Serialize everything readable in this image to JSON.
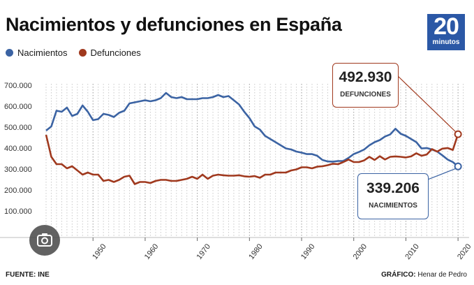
{
  "header": {
    "title": "Nacimientos y defunciones en España",
    "logo_number": "20",
    "logo_word": "minutos"
  },
  "legend": [
    {
      "label": "Nacimientos",
      "color": "#3b63a3"
    },
    {
      "label": "Defunciones",
      "color": "#a0391e"
    }
  ],
  "callouts": {
    "deaths": {
      "value": "492.930",
      "label": "DEFUNCIONES"
    },
    "births": {
      "value": "339.206",
      "label": "NACIMIENTOS"
    }
  },
  "footer": {
    "source": "FUENTE: INE",
    "credit_label": "GRÁFICO:",
    "credit_name": "Henar de Pedro"
  },
  "icons": {
    "overlay": "camera-icon"
  },
  "chart_data": {
    "type": "line",
    "title": "Nacimientos y defunciones en España",
    "xlabel": "",
    "ylabel": "",
    "xlim": [
      1941,
      2021
    ],
    "ylim": [
      0,
      700000
    ],
    "grid": "vertical dotted lines each year",
    "legend_position": "top-left",
    "yticks": [
      "100.000",
      "200.000",
      "300.000",
      "400.000",
      "500.000",
      "600.000",
      "700.000"
    ],
    "xticks": [
      "1950",
      "1960",
      "1970",
      "1980",
      "1990",
      "2000",
      "2010",
      "2020"
    ],
    "x": [
      1941,
      1942,
      1943,
      1944,
      1945,
      1946,
      1947,
      1948,
      1949,
      1950,
      1951,
      1952,
      1953,
      1954,
      1955,
      1956,
      1957,
      1958,
      1959,
      1960,
      1961,
      1962,
      1963,
      1964,
      1965,
      1966,
      1967,
      1968,
      1969,
      1970,
      1971,
      1972,
      1973,
      1974,
      1975,
      1976,
      1977,
      1978,
      1979,
      1980,
      1981,
      1982,
      1983,
      1984,
      1985,
      1986,
      1987,
      1988,
      1989,
      1990,
      1991,
      1992,
      1993,
      1994,
      1995,
      1996,
      1997,
      1998,
      1999,
      2000,
      2001,
      2002,
      2003,
      2004,
      2005,
      2006,
      2007,
      2008,
      2009,
      2010,
      2011,
      2012,
      2013,
      2014,
      2015,
      2016,
      2017,
      2018,
      2019,
      2020
    ],
    "series": [
      {
        "name": "Nacimientos",
        "color": "#3b63a3",
        "values": [
          510000,
          530000,
          605000,
          600000,
          620000,
          580000,
          590000,
          630000,
          600000,
          560000,
          565000,
          590000,
          585000,
          575000,
          595000,
          605000,
          640000,
          645000,
          650000,
          655000,
          650000,
          655000,
          665000,
          690000,
          670000,
          665000,
          670000,
          660000,
          660000,
          660000,
          665000,
          665000,
          670000,
          680000,
          670000,
          675000,
          655000,
          635000,
          600000,
          570000,
          530000,
          515000,
          485000,
          470000,
          455000,
          440000,
          425000,
          420000,
          410000,
          405000,
          398000,
          398000,
          390000,
          370000,
          363000,
          362000,
          365000,
          365000,
          380000,
          398000,
          408000,
          420000,
          440000,
          455000,
          465000,
          482000,
          492000,
          519000,
          495000,
          485000,
          470000,
          455000,
          425000,
          427000,
          420000,
          410000,
          392000,
          372000,
          360000,
          339206
        ]
      },
      {
        "name": "Defunciones",
        "color": "#a0391e",
        "values": [
          490000,
          385000,
          350000,
          350000,
          330000,
          340000,
          320000,
          300000,
          310000,
          300000,
          300000,
          270000,
          275000,
          265000,
          275000,
          290000,
          295000,
          255000,
          265000,
          265000,
          260000,
          270000,
          275000,
          275000,
          270000,
          270000,
          275000,
          280000,
          290000,
          280000,
          300000,
          280000,
          295000,
          300000,
          297000,
          295000,
          295000,
          297000,
          292000,
          290000,
          293000,
          285000,
          300000,
          300000,
          310000,
          310000,
          310000,
          320000,
          325000,
          335000,
          335000,
          330000,
          338000,
          340000,
          345000,
          352000,
          350000,
          360000,
          372000,
          360000,
          360000,
          368000,
          385000,
          370000,
          388000,
          372000,
          385000,
          387000,
          385000,
          382000,
          387000,
          402000,
          390000,
          396000,
          422000,
          410000,
          424000,
          427000,
          418000,
          492930
        ]
      }
    ]
  }
}
